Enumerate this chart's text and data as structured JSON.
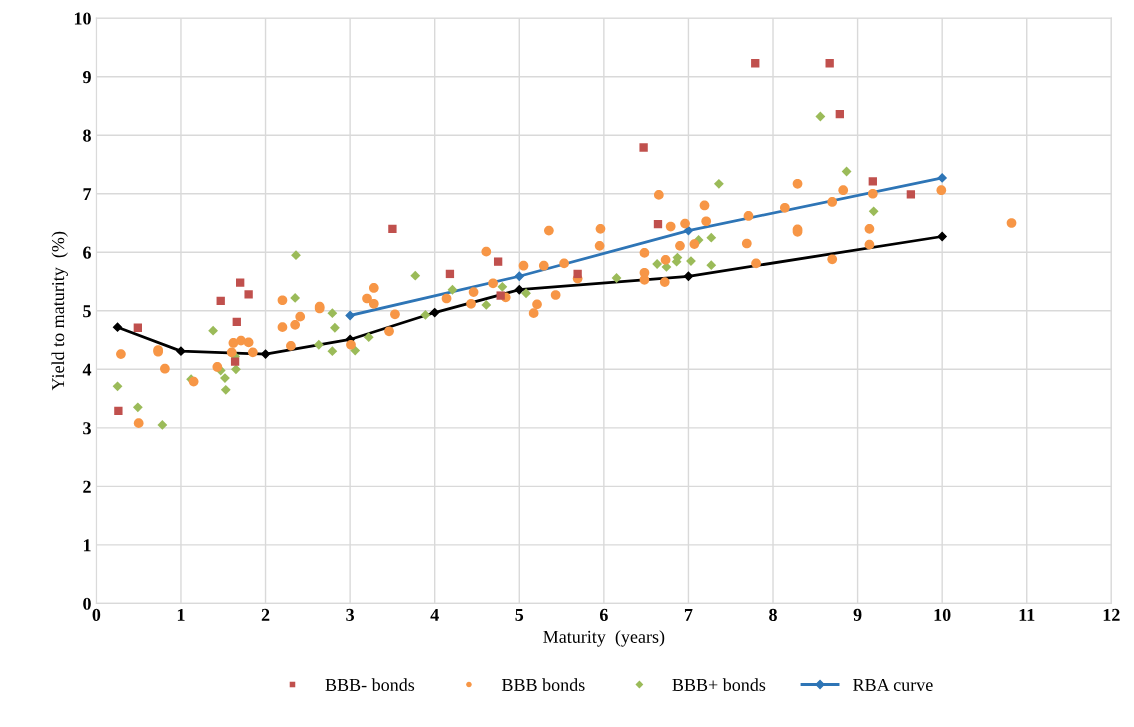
{
  "chart_data": {
    "type": "scatter",
    "xlabel": "Maturity  (years)",
    "ylabel": "Yield to maturity  (%)",
    "xlim": [
      0,
      12
    ],
    "xticks": [
      0,
      1,
      2,
      3,
      4,
      5,
      6,
      7,
      8,
      9,
      10,
      11,
      12
    ],
    "ylim": [
      0,
      10
    ],
    "yticks": [
      0,
      1,
      2,
      3,
      4,
      5,
      6,
      7,
      8,
      9,
      10
    ],
    "grid": true,
    "legend": "bottom",
    "series": [
      {
        "name": "BBB- bonds",
        "marker": "square",
        "color": "#c0504d",
        "x": [
          0.26,
          0.49,
          1.47,
          1.7,
          1.8,
          1.66,
          1.64,
          3.5,
          4.18,
          4.75,
          4.78,
          5.69,
          6.47,
          6.64,
          7.79,
          8.67,
          8.79,
          9.18,
          9.63
        ],
        "values": [
          3.29,
          4.71,
          5.17,
          5.48,
          5.28,
          4.81,
          4.13,
          6.4,
          5.63,
          5.84,
          5.26,
          5.63,
          7.79,
          6.48,
          9.23,
          9.23,
          8.36,
          7.21,
          6.99
        ]
      },
      {
        "name": "BBB bonds",
        "marker": "circle",
        "color": "#f79646",
        "x": [
          0.29,
          0.5,
          0.73,
          0.73,
          0.81,
          1.15,
          1.43,
          1.6,
          1.62,
          1.71,
          1.8,
          1.85,
          2.2,
          2.2,
          2.3,
          2.35,
          2.41,
          2.64,
          2.64,
          3.01,
          3.2,
          3.28,
          3.28,
          3.53,
          3.46,
          4.14,
          4.46,
          4.43,
          4.61,
          4.69,
          4.84,
          5.05,
          5.29,
          5.21,
          5.17,
          5.43,
          5.53,
          5.69,
          5.35,
          5.96,
          5.95,
          6.48,
          6.48,
          6.48,
          6.65,
          6.73,
          6.72,
          6.79,
          6.9,
          6.96,
          7.07,
          7.19,
          7.21,
          7.69,
          7.71,
          7.8,
          8.14,
          8.29,
          8.29,
          8.29,
          8.7,
          8.83,
          9.18,
          9.14,
          9.14,
          8.7,
          9.99,
          10.82
        ],
        "values": [
          4.26,
          3.08,
          4.33,
          4.3,
          4.01,
          3.79,
          4.04,
          4.29,
          4.45,
          4.49,
          4.46,
          4.29,
          5.18,
          4.72,
          4.4,
          4.76,
          4.9,
          5.07,
          5.04,
          4.42,
          5.21,
          5.39,
          5.12,
          4.94,
          4.65,
          5.21,
          5.32,
          5.12,
          6.01,
          5.47,
          5.23,
          5.77,
          5.77,
          5.11,
          4.96,
          5.27,
          5.81,
          5.55,
          6.37,
          6.4,
          6.11,
          5.99,
          5.65,
          5.53,
          6.98,
          5.87,
          5.49,
          6.44,
          6.11,
          6.49,
          6.14,
          6.8,
          6.53,
          6.15,
          6.62,
          5.81,
          6.76,
          7.17,
          6.39,
          6.35,
          6.86,
          7.06,
          7.0,
          6.4,
          6.13,
          5.88,
          7.06,
          6.5
        ]
      },
      {
        "name": "BBB+ bonds",
        "marker": "diamond",
        "color": "#9bbb59",
        "x": [
          0.25,
          0.49,
          0.78,
          1.12,
          1.38,
          1.47,
          1.52,
          1.53,
          1.65,
          1.64,
          2.35,
          2.36,
          2.63,
          2.79,
          2.82,
          2.79,
          3.06,
          3.22,
          3.77,
          3.89,
          4.21,
          4.61,
          4.8,
          5.08,
          6.15,
          6.63,
          6.74,
          6.86,
          6.87,
          7.03,
          7.12,
          7.27,
          7.27,
          7.36,
          8.56,
          8.87,
          9.19
        ],
        "values": [
          3.71,
          3.35,
          3.05,
          3.83,
          4.66,
          3.98,
          3.85,
          3.65,
          4.0,
          4.22,
          5.22,
          5.95,
          4.42,
          4.96,
          4.71,
          4.31,
          4.32,
          4.55,
          5.6,
          4.93,
          5.36,
          5.1,
          5.41,
          5.3,
          5.56,
          5.8,
          5.75,
          5.84,
          5.91,
          5.85,
          6.21,
          6.25,
          5.78,
          7.17,
          8.32,
          7.38,
          6.7
        ]
      },
      {
        "type": "line",
        "marker": "diamond",
        "color": "#000000",
        "x": [
          0.25,
          1,
          2,
          3,
          4,
          5,
          7,
          10
        ],
        "values": [
          4.72,
          4.31,
          4.26,
          4.51,
          4.97,
          5.36,
          5.59,
          6.27
        ]
      },
      {
        "name": "RBA curve",
        "type": "line",
        "marker": "diamond",
        "color": "#2e75b6",
        "x": [
          3,
          5,
          7,
          10
        ],
        "values": [
          4.92,
          5.59,
          6.37,
          7.27
        ]
      }
    ]
  }
}
